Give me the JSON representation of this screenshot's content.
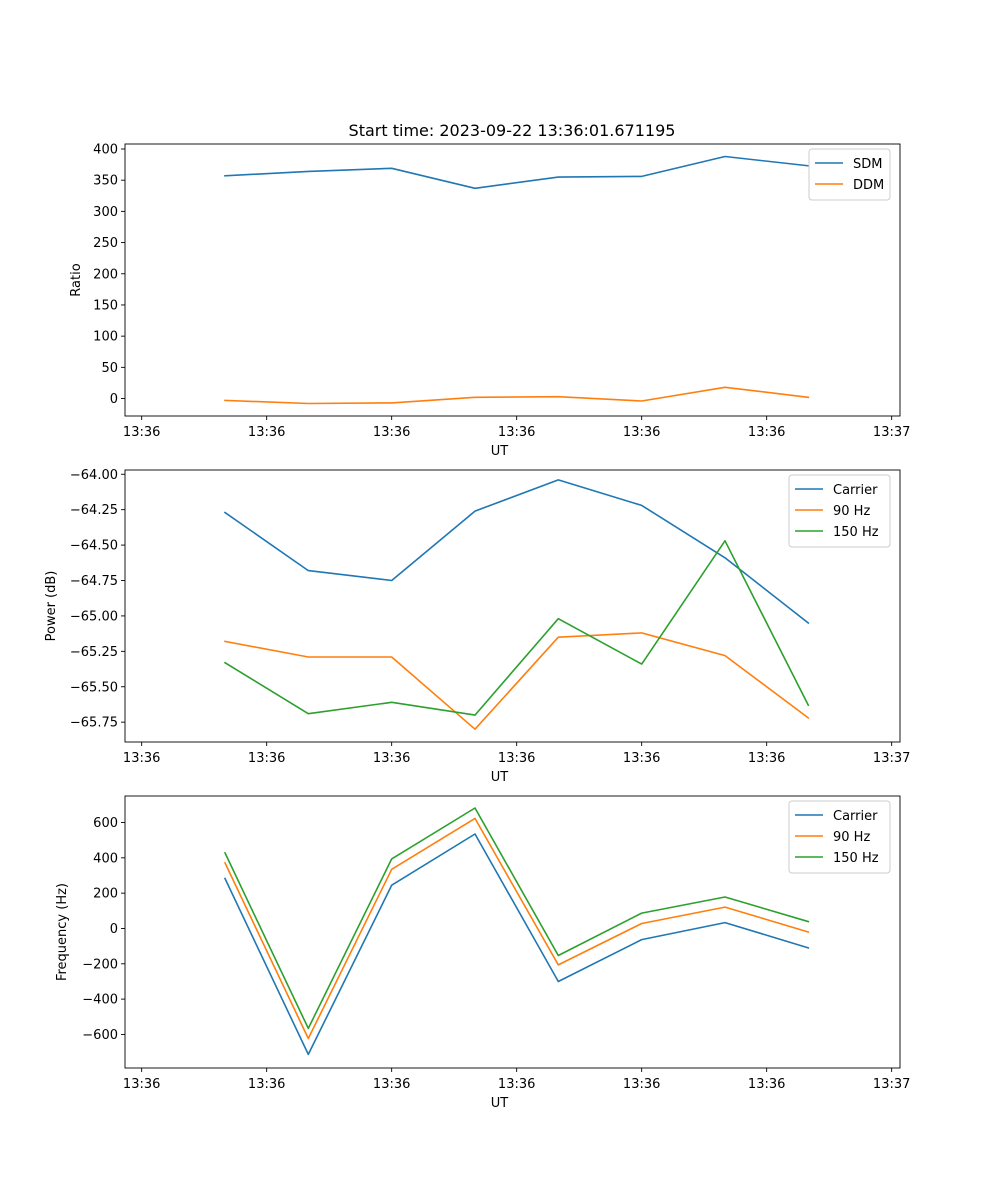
{
  "chart_data": [
    {
      "type": "line",
      "title": "Start time: 2023-09-22 13:36:01.671195",
      "xlabel": "UT",
      "ylabel": "Ratio",
      "x": [
        1,
        2,
        3,
        4,
        5,
        6,
        7,
        8
      ],
      "x_ticks": [
        0,
        1.5,
        3,
        4.5,
        6,
        7.5,
        9
      ],
      "x_tick_labels": [
        "13:36",
        "13:36",
        "13:36",
        "13:36",
        "13:36",
        "13:36",
        "13:37"
      ],
      "xlim": [
        -0.2,
        9.1
      ],
      "ylim": [
        -28,
        408
      ],
      "y_ticks": [
        0,
        50,
        100,
        150,
        200,
        250,
        300,
        350,
        400
      ],
      "y_tick_labels": [
        "0",
        "50",
        "100",
        "150",
        "200",
        "250",
        "300",
        "350",
        "400"
      ],
      "legend_position": "top-right",
      "grid": false,
      "series": [
        {
          "name": "SDM",
          "color": "#1f77b4",
          "values": [
            357,
            364,
            369,
            337,
            355,
            356,
            388,
            373
          ]
        },
        {
          "name": "DDM",
          "color": "#ff7f0e",
          "values": [
            -3,
            -8,
            -7,
            2,
            3,
            -4,
            18,
            2
          ]
        }
      ]
    },
    {
      "type": "line",
      "xlabel": "UT",
      "ylabel": "Power (dB)",
      "x": [
        1,
        2,
        3,
        4,
        5,
        6,
        7,
        8
      ],
      "x_ticks": [
        0,
        1.5,
        3,
        4.5,
        6,
        7.5,
        9
      ],
      "x_tick_labels": [
        "13:36",
        "13:36",
        "13:36",
        "13:36",
        "13:36",
        "13:36",
        "13:37"
      ],
      "xlim": [
        -0.2,
        9.1
      ],
      "ylim": [
        -65.89,
        -63.97
      ],
      "y_ticks": [
        -65.75,
        -65.5,
        -65.25,
        -65.0,
        -64.75,
        -64.5,
        -64.25,
        -64.0
      ],
      "y_tick_labels": [
        "−65.75",
        "−65.50",
        "−65.25",
        "−65.00",
        "−64.75",
        "−64.50",
        "−64.25",
        "−64.00"
      ],
      "legend_position": "top-right",
      "grid": false,
      "series": [
        {
          "name": "Carrier",
          "color": "#1f77b4",
          "values": [
            -64.27,
            -64.68,
            -64.75,
            -64.26,
            -64.04,
            -64.22,
            -64.59,
            -65.05
          ]
        },
        {
          "name": "90 Hz",
          "color": "#ff7f0e",
          "values": [
            -65.18,
            -65.29,
            -65.29,
            -65.8,
            -65.15,
            -65.12,
            -65.28,
            -65.72
          ]
        },
        {
          "name": "150 Hz",
          "color": "#2ca02c",
          "values": [
            -65.33,
            -65.69,
            -65.61,
            -65.7,
            -65.02,
            -65.34,
            -64.47,
            -65.63
          ]
        }
      ]
    },
    {
      "type": "line",
      "xlabel": "UT",
      "ylabel": "Frequency (Hz)",
      "x": [
        1,
        2,
        3,
        4,
        5,
        6,
        7,
        8
      ],
      "x_ticks": [
        0,
        1.5,
        3,
        4.5,
        6,
        7.5,
        9
      ],
      "x_tick_labels": [
        "13:36",
        "13:36",
        "13:36",
        "13:36",
        "13:36",
        "13:36",
        "13:37"
      ],
      "xlim": [
        -0.2,
        9.1
      ],
      "ylim": [
        -790,
        750
      ],
      "y_ticks": [
        -600,
        -400,
        -200,
        0,
        200,
        400,
        600
      ],
      "y_tick_labels": [
        "−600",
        "−400",
        "−200",
        "0",
        "200",
        "400",
        "600"
      ],
      "legend_position": "top-right",
      "grid": false,
      "series": [
        {
          "name": "Carrier",
          "color": "#1f77b4",
          "values": [
            283,
            -713,
            245,
            535,
            -300,
            -63,
            33,
            -110
          ]
        },
        {
          "name": "90 Hz",
          "color": "#ff7f0e",
          "values": [
            371,
            -623,
            335,
            623,
            -206,
            28,
            121,
            -20
          ]
        },
        {
          "name": "150 Hz",
          "color": "#2ca02c",
          "values": [
            428,
            -566,
            394,
            682,
            -153,
            87,
            178,
            39
          ]
        }
      ]
    }
  ]
}
